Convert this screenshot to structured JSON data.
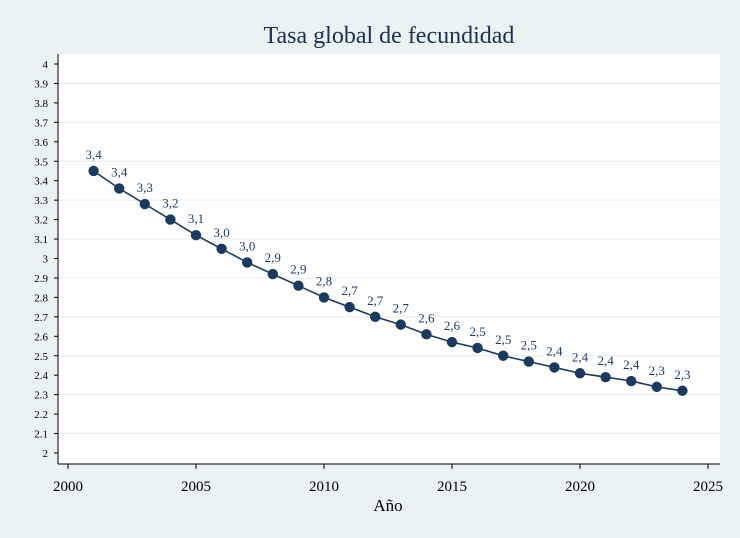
{
  "chart_data": {
    "type": "line",
    "title": "Tasa global de fecundidad",
    "xlabel": "Año",
    "ylabel": "",
    "xlim": [
      2000,
      2025
    ],
    "ylim": [
      2,
      4
    ],
    "x_ticks": [
      2000,
      2005,
      2010,
      2015,
      2020,
      2025
    ],
    "y_ticks": [
      2,
      2.1,
      2.2,
      2.3,
      2.4,
      2.5,
      2.6,
      2.7,
      2.8,
      2.9,
      3,
      3.1,
      3.2,
      3.3,
      3.4,
      3.5,
      3.6,
      3.7,
      3.8,
      3.9,
      4
    ],
    "y_tick_labels": [
      "2",
      "2.1",
      "2.2",
      "2.3",
      "2.4",
      "2.5",
      "2.6",
      "2.7",
      "2.8",
      "2.9",
      "3",
      "3.1",
      "3.2",
      "3.3",
      "3.4",
      "3.5",
      "3.6",
      "3.7",
      "3.8",
      "3.9",
      "4"
    ],
    "grid": true,
    "legend": "none",
    "colors": {
      "line": "#1c3a5e",
      "marker": "#1c3a5e",
      "grid": "#e6ecee",
      "plot_bg": "#ffffff",
      "page_bg": "#eaf2f3"
    },
    "series": [
      {
        "x": [
          2001,
          2002,
          2003,
          2004,
          2005,
          2006,
          2007,
          2008,
          2009,
          2010,
          2011,
          2012,
          2013,
          2014,
          2015,
          2016,
          2017,
          2018,
          2019,
          2020,
          2021,
          2022,
          2023,
          2024
        ],
        "values": [
          3.45,
          3.36,
          3.28,
          3.2,
          3.12,
          3.05,
          2.98,
          2.92,
          2.86,
          2.8,
          2.75,
          2.7,
          2.66,
          2.61,
          2.57,
          2.54,
          2.5,
          2.47,
          2.44,
          2.41,
          2.39,
          2.37,
          2.34,
          2.32
        ],
        "labels": [
          "3,4",
          "3,4",
          "3,3",
          "3,2",
          "3,1",
          "3,0",
          "3,0",
          "2,9",
          "2,9",
          "2,8",
          "2,7",
          "2,7",
          "2,7",
          "2,6",
          "2,6",
          "2,5",
          "2,5",
          "2,5",
          "2,4",
          "2,4",
          "2,4",
          "2,4",
          "2,3",
          "2,3"
        ]
      }
    ]
  }
}
